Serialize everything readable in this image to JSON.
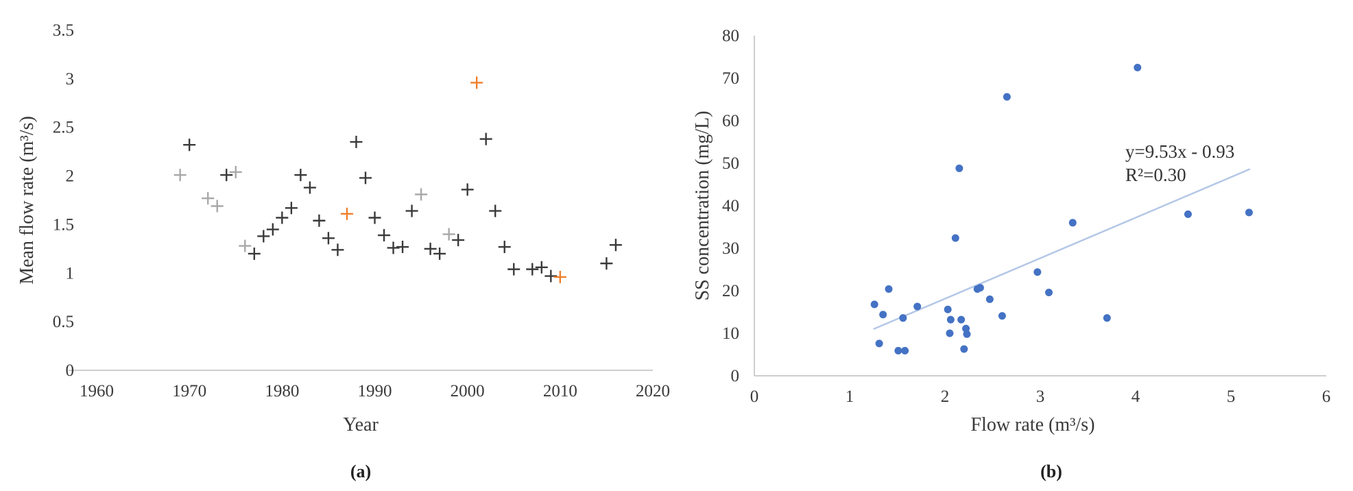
{
  "chart_data": [
    {
      "type": "scatter",
      "panel_label": "(a)",
      "xlabel": "Year",
      "ylabel": "Mean flow rate (m³/s)",
      "xlim": [
        1960,
        2020
      ],
      "ylim": [
        0,
        3.5
      ],
      "xticks": [
        "1960",
        "1970",
        "1980",
        "1990",
        "2000",
        "2010",
        "2020"
      ],
      "yticks": [
        "0",
        "0.5",
        "1",
        "1.5",
        "2",
        "2.5",
        "3",
        "3.5"
      ],
      "grid": false,
      "marker": "plus",
      "colors": {
        "normal": "#3a3a3a",
        "light": "#a8a8a8",
        "highlight": "#f07f2a"
      },
      "points": [
        {
          "x": 1969,
          "y": 2.01,
          "c": "light"
        },
        {
          "x": 1970,
          "y": 2.32,
          "c": "normal"
        },
        {
          "x": 1972,
          "y": 1.77,
          "c": "light"
        },
        {
          "x": 1973,
          "y": 1.69,
          "c": "light"
        },
        {
          "x": 1974,
          "y": 2.01,
          "c": "normal"
        },
        {
          "x": 1975,
          "y": 2.04,
          "c": "light"
        },
        {
          "x": 1976,
          "y": 1.28,
          "c": "light"
        },
        {
          "x": 1977,
          "y": 1.2,
          "c": "normal"
        },
        {
          "x": 1978,
          "y": 1.38,
          "c": "normal"
        },
        {
          "x": 1979,
          "y": 1.45,
          "c": "normal"
        },
        {
          "x": 1980,
          "y": 1.57,
          "c": "normal"
        },
        {
          "x": 1981,
          "y": 1.67,
          "c": "normal"
        },
        {
          "x": 1982,
          "y": 2.01,
          "c": "normal"
        },
        {
          "x": 1983,
          "y": 1.88,
          "c": "normal"
        },
        {
          "x": 1984,
          "y": 1.54,
          "c": "normal"
        },
        {
          "x": 1985,
          "y": 1.36,
          "c": "normal"
        },
        {
          "x": 1986,
          "y": 1.24,
          "c": "normal"
        },
        {
          "x": 1987,
          "y": 1.61,
          "c": "highlight"
        },
        {
          "x": 1988,
          "y": 2.35,
          "c": "normal"
        },
        {
          "x": 1989,
          "y": 1.98,
          "c": "normal"
        },
        {
          "x": 1990,
          "y": 1.57,
          "c": "normal"
        },
        {
          "x": 1991,
          "y": 1.39,
          "c": "normal"
        },
        {
          "x": 1992,
          "y": 1.26,
          "c": "normal"
        },
        {
          "x": 1993,
          "y": 1.27,
          "c": "normal"
        },
        {
          "x": 1994,
          "y": 1.64,
          "c": "normal"
        },
        {
          "x": 1995,
          "y": 1.81,
          "c": "light"
        },
        {
          "x": 1996,
          "y": 1.25,
          "c": "normal"
        },
        {
          "x": 1997,
          "y": 1.2,
          "c": "normal"
        },
        {
          "x": 1998,
          "y": 1.4,
          "c": "light"
        },
        {
          "x": 1999,
          "y": 1.34,
          "c": "normal"
        },
        {
          "x": 2000,
          "y": 1.86,
          "c": "normal"
        },
        {
          "x": 2001,
          "y": 2.96,
          "c": "highlight"
        },
        {
          "x": 2002,
          "y": 2.38,
          "c": "normal"
        },
        {
          "x": 2003,
          "y": 1.64,
          "c": "normal"
        },
        {
          "x": 2004,
          "y": 1.27,
          "c": "normal"
        },
        {
          "x": 2005,
          "y": 1.04,
          "c": "normal"
        },
        {
          "x": 2007,
          "y": 1.04,
          "c": "normal"
        },
        {
          "x": 2008,
          "y": 1.06,
          "c": "normal"
        },
        {
          "x": 2009,
          "y": 0.97,
          "c": "normal"
        },
        {
          "x": 2010,
          "y": 0.96,
          "c": "highlight"
        },
        {
          "x": 2015,
          "y": 1.1,
          "c": "normal"
        },
        {
          "x": 2016,
          "y": 1.29,
          "c": "normal"
        }
      ]
    },
    {
      "type": "scatter",
      "panel_label": "(b)",
      "xlabel": "Flow rate (m³/s)",
      "ylabel": "SS concentration (mg/L)",
      "xlim": [
        0,
        6
      ],
      "ylim": [
        0,
        80
      ],
      "xticks": [
        "0",
        "1",
        "2",
        "3",
        "4",
        "5",
        "6"
      ],
      "yticks": [
        "0",
        "10",
        "20",
        "30",
        "40",
        "50",
        "60",
        "70",
        "80"
      ],
      "grid": false,
      "marker": "circle",
      "color": "#4472c4",
      "trendline": {
        "slope": 9.53,
        "intercept": -0.93,
        "x_range": [
          1.25,
          5.2
        ],
        "color": "#b4c7e7"
      },
      "annotation": {
        "equation": "y=9.53x - 0.93",
        "r2": "R²=0.30"
      },
      "points": [
        {
          "x": 1.26,
          "y": 16.8
        },
        {
          "x": 1.31,
          "y": 7.6
        },
        {
          "x": 1.35,
          "y": 14.4
        },
        {
          "x": 1.41,
          "y": 20.4
        },
        {
          "x": 1.51,
          "y": 5.9
        },
        {
          "x": 1.56,
          "y": 13.6
        },
        {
          "x": 1.58,
          "y": 5.9
        },
        {
          "x": 1.71,
          "y": 16.3
        },
        {
          "x": 2.03,
          "y": 15.6
        },
        {
          "x": 2.05,
          "y": 10.0
        },
        {
          "x": 2.06,
          "y": 13.2
        },
        {
          "x": 2.11,
          "y": 32.4
        },
        {
          "x": 2.15,
          "y": 48.8
        },
        {
          "x": 2.17,
          "y": 13.2
        },
        {
          "x": 2.2,
          "y": 6.3
        },
        {
          "x": 2.22,
          "y": 11.1
        },
        {
          "x": 2.23,
          "y": 9.8
        },
        {
          "x": 2.34,
          "y": 20.4
        },
        {
          "x": 2.37,
          "y": 20.7
        },
        {
          "x": 2.47,
          "y": 18.0
        },
        {
          "x": 2.6,
          "y": 14.1
        },
        {
          "x": 2.65,
          "y": 65.6
        },
        {
          "x": 2.97,
          "y": 24.4
        },
        {
          "x": 3.09,
          "y": 19.6
        },
        {
          "x": 3.34,
          "y": 36.0
        },
        {
          "x": 3.7,
          "y": 13.6
        },
        {
          "x": 4.02,
          "y": 72.5
        },
        {
          "x": 4.55,
          "y": 38.0
        },
        {
          "x": 5.19,
          "y": 38.4
        }
      ]
    }
  ]
}
